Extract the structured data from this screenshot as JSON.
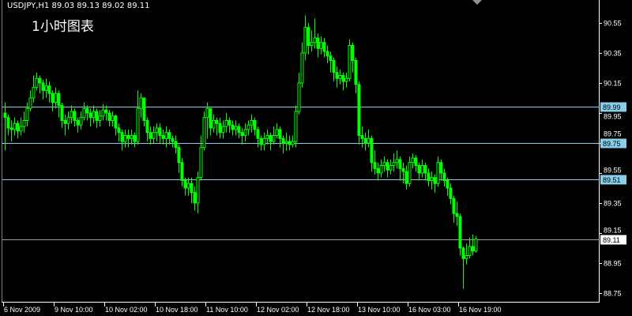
{
  "header": {
    "symbol_info": "USDJPY,H1  89.03 89.13 89.02 89.11",
    "caption": "1小时图表"
  },
  "colors": {
    "background": "#000000",
    "candle": "#00FF00",
    "level_line": "#87CEEB",
    "bid_line": "#A0A0A0",
    "axis": "#FFFFFF"
  },
  "chart_data": {
    "type": "candlestick",
    "symbol": "USDJPY",
    "timeframe": "H1",
    "ylim": [
      88.7,
      90.7
    ],
    "y_ticks": [
      "90.55",
      "90.35",
      "90.15",
      "89.95",
      "89.75",
      "89.55",
      "89.35",
      "89.15",
      "88.95",
      "88.75"
    ],
    "x_ticks": [
      {
        "label": "6 Nov 2009",
        "bar": 0
      },
      {
        "label": "9 Nov 10:00",
        "bar": 16
      },
      {
        "label": "10 Nov 02:00",
        "bar": 32
      },
      {
        "label": "10 Nov 18:00",
        "bar": 48
      },
      {
        "label": "11 Nov 10:00",
        "bar": 64
      },
      {
        "label": "12 Nov 02:00",
        "bar": 80
      },
      {
        "label": "12 Nov 18:00",
        "bar": 96
      },
      {
        "label": "13 Nov 10:00",
        "bar": 112
      },
      {
        "label": "16 Nov 03:00",
        "bar": 128
      },
      {
        "label": "16 Nov 19:00",
        "bar": 144
      }
    ],
    "levels": [
      {
        "price": "89.99",
        "kind": "line"
      },
      {
        "price": "89.75",
        "kind": "line"
      },
      {
        "price": "89.51",
        "kind": "line"
      },
      {
        "price": "89.11",
        "kind": "bid"
      }
    ],
    "first_open": 89.95,
    "close": [
      89.92,
      89.85,
      89.84,
      89.88,
      89.83,
      89.86,
      89.9,
      89.98,
      90.05,
      90.12,
      90.18,
      90.15,
      90.1,
      90.13,
      90.08,
      90.02,
      90.08,
      90.0,
      89.9,
      89.88,
      89.92,
      89.96,
      89.9,
      89.87,
      89.92,
      89.98,
      89.95,
      89.92,
      89.96,
      89.9,
      89.93,
      89.97,
      89.95,
      89.9,
      89.93,
      89.85,
      89.82,
      89.76,
      89.8,
      89.78,
      89.8,
      89.76,
      89.98,
      90.05,
      89.9,
      89.82,
      89.78,
      89.82,
      89.85,
      89.8,
      89.78,
      89.82,
      89.78,
      89.76,
      89.72,
      89.62,
      89.5,
      89.45,
      89.48,
      89.42,
      89.35,
      89.52,
      89.72,
      89.92,
      89.98,
      89.85,
      89.9,
      89.88,
      89.82,
      89.86,
      89.9,
      89.87,
      89.84,
      89.86,
      89.82,
      89.8,
      89.84,
      89.87,
      89.9,
      89.84,
      89.78,
      89.74,
      89.78,
      89.8,
      89.76,
      89.8,
      89.84,
      89.78,
      89.75,
      89.76,
      89.74,
      89.76,
      89.96,
      90.15,
      90.35,
      90.52,
      90.4,
      90.42,
      90.45,
      90.38,
      90.42,
      90.36,
      90.33,
      90.3,
      90.22,
      90.18,
      90.2,
      90.16,
      90.18,
      90.4,
      90.3,
      90.14,
      89.8,
      89.78,
      89.75,
      89.78,
      89.62,
      89.58,
      89.55,
      89.6,
      89.62,
      89.57,
      89.6,
      89.62,
      89.64,
      89.58,
      89.56,
      89.48,
      89.62,
      89.65,
      89.6,
      89.55,
      89.6,
      89.55,
      89.5,
      89.52,
      89.48,
      89.62,
      89.55,
      89.5,
      89.45,
      89.38,
      89.28,
      89.26,
      89.05,
      88.98,
      89.0,
      89.06,
      89.03,
      89.11
    ],
    "high": [
      90.02,
      89.94,
      89.9,
      89.92,
      89.9,
      89.92,
      89.96,
      90.02,
      90.1,
      90.2,
      90.22,
      90.2,
      90.17,
      90.18,
      90.16,
      90.1,
      90.12,
      90.1,
      90.02,
      89.94,
      89.96,
      90.0,
      89.98,
      89.92,
      89.96,
      90.02,
      90.0,
      89.98,
      90.0,
      89.98,
      89.97,
      90.01,
      90.0,
      89.97,
      89.96,
      89.94,
      89.88,
      89.84,
      89.84,
      89.84,
      89.84,
      89.82,
      90.1,
      90.08,
      90.04,
      89.92,
      89.86,
      89.86,
      89.88,
      89.88,
      89.84,
      89.86,
      89.84,
      89.8,
      89.8,
      89.74,
      89.65,
      89.52,
      89.52,
      89.52,
      89.46,
      89.56,
      89.8,
      89.96,
      90.02,
      89.98,
      89.94,
      89.92,
      89.92,
      89.9,
      89.95,
      89.92,
      89.9,
      89.9,
      89.88,
      89.85,
      89.88,
      89.9,
      89.94,
      89.92,
      89.86,
      89.8,
      89.82,
      89.84,
      89.82,
      89.86,
      89.88,
      89.86,
      89.8,
      89.82,
      89.8,
      89.8,
      90.0,
      90.22,
      90.42,
      90.6,
      90.55,
      90.5,
      90.58,
      90.48,
      90.46,
      90.45,
      90.4,
      90.36,
      90.32,
      90.26,
      90.24,
      90.22,
      90.22,
      90.44,
      90.42,
      90.32,
      90.16,
      89.86,
      89.82,
      89.84,
      89.8,
      89.7,
      89.62,
      89.64,
      89.66,
      89.64,
      89.64,
      89.68,
      89.7,
      89.66,
      89.62,
      89.6,
      89.66,
      89.68,
      89.67,
      89.62,
      89.64,
      89.62,
      89.58,
      89.56,
      89.54,
      89.66,
      89.64,
      89.58,
      89.52,
      89.48,
      89.4,
      89.36,
      89.28,
      89.06,
      89.08,
      89.12,
      89.14,
      89.13
    ],
    "low": [
      89.7,
      89.8,
      89.76,
      89.8,
      89.78,
      89.8,
      89.82,
      89.86,
      89.96,
      90.02,
      90.1,
      90.08,
      90.04,
      90.05,
      90.02,
      89.96,
      89.98,
      89.92,
      89.85,
      89.8,
      89.84,
      89.88,
      89.86,
      89.82,
      89.84,
      89.9,
      89.9,
      89.86,
      89.88,
      89.85,
      89.86,
      89.9,
      89.9,
      89.86,
      89.86,
      89.8,
      89.76,
      89.7,
      89.72,
      89.72,
      89.74,
      89.72,
      89.74,
      89.92,
      89.86,
      89.76,
      89.74,
      89.75,
      89.76,
      89.75,
      89.74,
      89.72,
      89.74,
      89.72,
      89.68,
      89.55,
      89.46,
      89.4,
      89.4,
      89.35,
      89.3,
      89.28,
      89.5,
      89.7,
      89.78,
      89.8,
      89.82,
      89.8,
      89.78,
      89.78,
      89.82,
      89.82,
      89.8,
      89.8,
      89.78,
      89.74,
      89.76,
      89.8,
      89.82,
      89.8,
      89.72,
      89.7,
      89.7,
      89.74,
      89.7,
      89.74,
      89.78,
      89.72,
      89.68,
      89.7,
      89.7,
      89.72,
      89.72,
      89.94,
      90.12,
      90.3,
      90.34,
      90.36,
      90.38,
      90.32,
      90.34,
      90.32,
      90.28,
      90.22,
      90.16,
      90.12,
      90.14,
      90.1,
      90.12,
      90.16,
      90.22,
      90.08,
      89.74,
      89.72,
      89.7,
      89.72,
      89.56,
      89.54,
      89.5,
      89.52,
      89.56,
      89.52,
      89.54,
      89.56,
      89.58,
      89.5,
      89.48,
      89.44,
      89.46,
      89.58,
      89.56,
      89.5,
      89.52,
      89.5,
      89.46,
      89.44,
      89.42,
      89.46,
      89.5,
      89.46,
      89.4,
      89.34,
      89.22,
      89.2,
      89.0,
      88.78,
      88.94,
      88.98,
      89.0,
      89.02
    ]
  }
}
